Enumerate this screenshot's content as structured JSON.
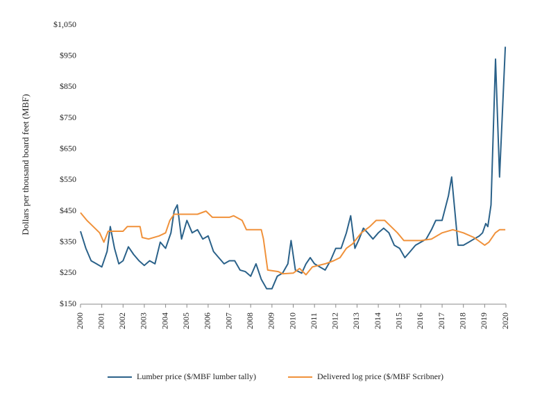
{
  "chart_data": {
    "type": "line",
    "y_label": "Dollars per thousand board feet (MBF)",
    "xlim": [
      2000,
      2020
    ],
    "xticks": [
      2000,
      2001,
      2002,
      2003,
      2004,
      2005,
      2006,
      2007,
      2008,
      2009,
      2010,
      2011,
      2012,
      2013,
      2014,
      2015,
      2016,
      2017,
      2018,
      2019,
      2020
    ],
    "ylim": [
      150,
      1050
    ],
    "yticks": [
      {
        "value": 150,
        "label": "$150"
      },
      {
        "value": 250,
        "label": "$250"
      },
      {
        "value": 350,
        "label": "$350"
      },
      {
        "value": 450,
        "label": "$450"
      },
      {
        "value": 550,
        "label": "$550"
      },
      {
        "value": 650,
        "label": "$650"
      },
      {
        "value": 750,
        "label": "$750"
      },
      {
        "value": 850,
        "label": "$850"
      },
      {
        "value": 950,
        "label": "$950"
      },
      {
        "value": 1050,
        "label": "$1,050"
      }
    ],
    "grid": false,
    "legend": "bottom",
    "series": [
      {
        "name": "Lumber price ($/MBF lumber tally)",
        "color": "#2a6189",
        "x": [
          2000,
          2000.25,
          2000.5,
          2000.75,
          2001,
          2001.25,
          2001.4,
          2001.6,
          2001.8,
          2002,
          2002.25,
          2002.5,
          2002.75,
          2003,
          2003.25,
          2003.5,
          2003.75,
          2004,
          2004.25,
          2004.4,
          2004.55,
          2004.75,
          2005,
          2005.25,
          2005.5,
          2005.75,
          2006,
          2006.25,
          2006.5,
          2006.75,
          2007,
          2007.25,
          2007.5,
          2007.75,
          2008,
          2008.25,
          2008.5,
          2008.75,
          2009,
          2009.25,
          2009.5,
          2009.75,
          2009.9,
          2010.1,
          2010.4,
          2010.6,
          2010.8,
          2011,
          2011.25,
          2011.5,
          2011.75,
          2012,
          2012.25,
          2012.5,
          2012.7,
          2012.9,
          2013.1,
          2013.3,
          2013.5,
          2013.75,
          2014,
          2014.25,
          2014.5,
          2014.75,
          2015,
          2015.25,
          2015.5,
          2015.75,
          2016,
          2016.25,
          2016.5,
          2016.7,
          2017,
          2017.3,
          2017.45,
          2017.6,
          2017.75,
          2018,
          2018.25,
          2018.5,
          2018.75,
          2018.9,
          2019.05,
          2019.15,
          2019.3,
          2019.51,
          2019.7,
          2019.97
        ],
        "values": [
          385,
          330,
          290,
          280,
          270,
          320,
          400,
          330,
          280,
          290,
          335,
          310,
          290,
          275,
          290,
          280,
          350,
          330,
          380,
          450,
          470,
          360,
          420,
          380,
          390,
          360,
          370,
          320,
          300,
          280,
          290,
          290,
          260,
          255,
          240,
          280,
          230,
          200,
          200,
          240,
          250,
          280,
          355,
          260,
          250,
          280,
          300,
          280,
          270,
          260,
          290,
          330,
          330,
          380,
          435,
          330,
          360,
          395,
          380,
          360,
          380,
          395,
          380,
          340,
          330,
          300,
          320,
          340,
          350,
          360,
          390,
          420,
          420,
          500,
          560,
          450,
          340,
          340,
          350,
          360,
          370,
          380,
          410,
          400,
          470,
          940,
          560,
          980
        ]
      },
      {
        "name": "Delivered log price ($/MBF Scribner)",
        "color": "#f0913a",
        "x": [
          2000,
          2000.3,
          2000.6,
          2000.9,
          2001.1,
          2001.3,
          2002,
          2002.2,
          2002.8,
          2002.9,
          2003.2,
          2003.7,
          2004,
          2004.2,
          2004.4,
          2005.5,
          2005.9,
          2006.2,
          2007,
          2007.2,
          2007.6,
          2007.8,
          2008.5,
          2008.6,
          2008.8,
          2009.3,
          2009.5,
          2010,
          2010.3,
          2010.6,
          2010.9,
          2011.5,
          2011.9,
          2012.2,
          2012.5,
          2012.8,
          2013.2,
          2013.6,
          2013.9,
          2014.3,
          2014.6,
          2014.9,
          2015.2,
          2016,
          2016.5,
          2017,
          2017.5,
          2018,
          2018.5,
          2019,
          2019.2,
          2019.5,
          2019.7,
          2019.97
        ],
        "values": [
          445,
          420,
          400,
          380,
          350,
          385,
          385,
          400,
          400,
          365,
          360,
          370,
          380,
          420,
          440,
          440,
          450,
          430,
          430,
          435,
          420,
          390,
          390,
          360,
          260,
          255,
          248,
          250,
          265,
          245,
          270,
          280,
          290,
          300,
          330,
          345,
          380,
          400,
          420,
          420,
          400,
          380,
          355,
          355,
          360,
          380,
          390,
          380,
          365,
          340,
          350,
          380,
          390,
          390
        ]
      }
    ]
  }
}
